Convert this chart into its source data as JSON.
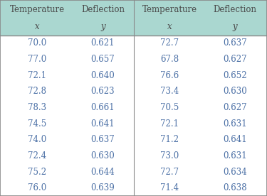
{
  "header_row1": [
    "Temperature",
    "Deflection",
    "Temperature",
    "Deflection"
  ],
  "header_row2": [
    "x",
    "y",
    "x",
    "y"
  ],
  "col1_temp": [
    70.0,
    77.0,
    72.1,
    72.8,
    78.3,
    74.5,
    74.0,
    72.4,
    75.2,
    76.0
  ],
  "col1_defl": [
    0.621,
    0.657,
    0.64,
    0.623,
    0.661,
    0.641,
    0.637,
    0.63,
    0.644,
    0.639
  ],
  "col2_temp": [
    72.7,
    67.8,
    76.6,
    73.4,
    70.5,
    72.1,
    71.2,
    73.0,
    72.7,
    71.4
  ],
  "col2_defl": [
    0.637,
    0.627,
    0.652,
    0.63,
    0.627,
    0.631,
    0.641,
    0.631,
    0.634,
    0.638
  ],
  "header_bg": "#aad7d0",
  "header_text_color": "#4a4a4a",
  "data_text_color": "#4a6fa5",
  "bg_color": "#ffffff",
  "border_color": "#888888",
  "figsize": [
    3.75,
    2.76
  ],
  "dpi": 100
}
